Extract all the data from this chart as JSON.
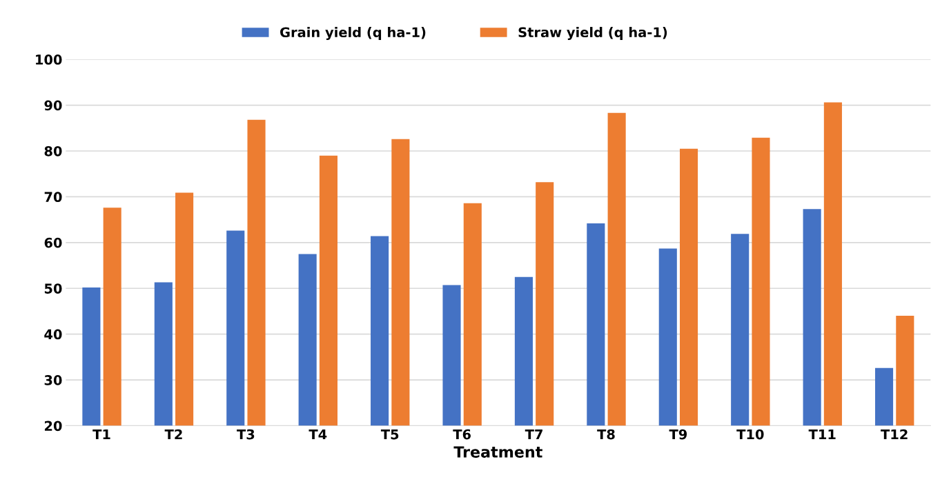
{
  "chart_data": {
    "type": "bar",
    "xlabel": "Treatment",
    "categories": [
      "T1",
      "T2",
      "T3",
      "T4",
      "T5",
      "T6",
      "T7",
      "T8",
      "T9",
      "T10",
      "T11",
      "T12"
    ],
    "series": [
      {
        "name": "Grain yield (q ha-1)",
        "color": "#4472c4",
        "values": [
          50.2,
          51.3,
          62.6,
          57.5,
          61.4,
          50.7,
          52.5,
          64.2,
          58.7,
          61.9,
          67.3,
          32.6
        ]
      },
      {
        "name": "Straw yield (q ha-1)",
        "color": "#ed7d31",
        "values": [
          67.6,
          70.9,
          86.8,
          79.0,
          82.6,
          68.6,
          73.2,
          88.3,
          80.5,
          82.9,
          90.6,
          44.0
        ]
      }
    ],
    "ylim": [
      20,
      100
    ],
    "yticks": [
      20,
      30,
      40,
      50,
      60,
      70,
      80,
      90,
      100
    ],
    "grid": "y",
    "legend": "top"
  }
}
